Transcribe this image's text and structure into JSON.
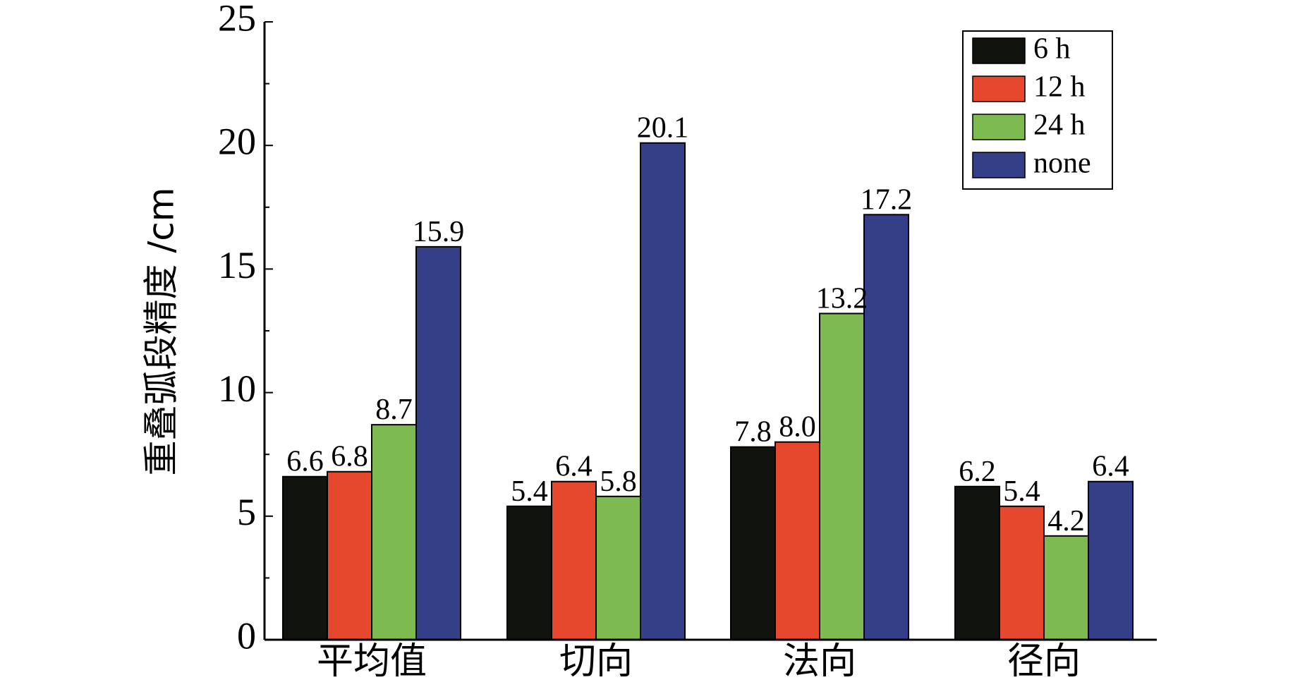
{
  "chart_data": {
    "type": "bar",
    "categories": [
      "平均值",
      "切向",
      "法向",
      "径向"
    ],
    "series": [
      {
        "name": "6 h",
        "color": "#10130e",
        "values": [
          6.6,
          5.4,
          7.8,
          6.2
        ]
      },
      {
        "name": "12 h",
        "color": "#e5482d",
        "values": [
          6.8,
          6.4,
          8.0,
          5.4
        ]
      },
      {
        "name": "24 h",
        "color": "#7dba4f",
        "values": [
          8.7,
          5.8,
          13.2,
          4.2
        ]
      },
      {
        "name": "none",
        "color": "#343f87",
        "values": [
          15.9,
          20.1,
          17.2,
          6.4
        ]
      }
    ],
    "data_labels": [
      [
        "6.6",
        "5.4",
        "7.8",
        "6.2"
      ],
      [
        "6.8",
        "6.4",
        "8.0",
        "5.4"
      ],
      [
        "8.7",
        "5.8",
        "13.2",
        "4.2"
      ],
      [
        "15.9",
        "20.1",
        "17.2",
        "6.4"
      ]
    ],
    "xlabel": "",
    "ylabel": "重叠弧段精度 /cm",
    "ylim": [
      0,
      25
    ],
    "yticks": [
      "0",
      "5",
      "10",
      "15",
      "20",
      "25"
    ],
    "grid": false,
    "legend_position": "top-right"
  }
}
